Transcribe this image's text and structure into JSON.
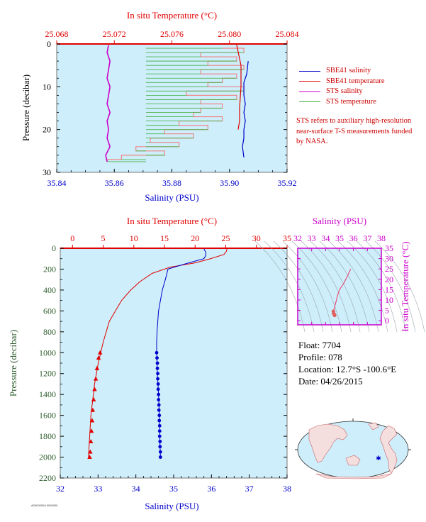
{
  "colors": {
    "plot_bg": "#cdeefa",
    "red": "#e00000",
    "blue": "#0000cc",
    "magenta": "#cc00cc",
    "green": "#4db34d",
    "pink": "#ee8888",
    "dark_green": "#2f5f2f"
  },
  "chart_data": [
    {
      "type": "line",
      "name": "top-profile",
      "title": "",
      "xlabel": "Salinity (PSU)",
      "x2label": "In situ Temperature (°C)",
      "ylabel": "Pressure (decibar)",
      "xlim": [
        35.84,
        35.92
      ],
      "x2lim": [
        25.068,
        25.084
      ],
      "ylim": [
        0,
        30
      ],
      "y_reversed": true,
      "xticks": [
        "35.84",
        "35.86",
        "35.88",
        "35.90",
        "35.92"
      ],
      "x2ticks": [
        "25.068",
        "25.072",
        "25.076",
        "25.080",
        "25.084"
      ],
      "yticks": [
        "0",
        "10",
        "20",
        "30"
      ],
      "grid": false,
      "legend": [
        {
          "label": "SBE41 salinity",
          "color": "#0000cc"
        },
        {
          "label": "SBE41 temperature",
          "color": "#e00000"
        },
        {
          "label": "STS salinity",
          "color": "#cc00cc"
        },
        {
          "label": "STS temperature",
          "color": "#4db34d"
        }
      ],
      "annotation": "STS refers to auxiliary high-resolution near-surface T-S measurements funded by NASA.",
      "series": [
        {
          "name": "STS salinity",
          "axis": "salinity",
          "color": "#cc00cc",
          "points": [
            [
              35.858,
              0.3
            ],
            [
              35.8575,
              2
            ],
            [
              35.8585,
              4
            ],
            [
              35.858,
              6
            ],
            [
              35.8575,
              8
            ],
            [
              35.8585,
              10
            ],
            [
              35.858,
              12
            ],
            [
              35.8575,
              14
            ],
            [
              35.8585,
              16
            ],
            [
              35.8575,
              18
            ],
            [
              35.858,
              20
            ],
            [
              35.8575,
              22
            ],
            [
              35.8585,
              24
            ],
            [
              35.857,
              26
            ],
            [
              35.8575,
              27.5
            ]
          ]
        },
        {
          "name": "SBE41 salinity",
          "axis": "salinity",
          "color": "#0000cc",
          "points": [
            [
              35.9065,
              4
            ],
            [
              35.906,
              7
            ],
            [
              35.905,
              9
            ],
            [
              35.905,
              12
            ],
            [
              35.9055,
              14
            ],
            [
              35.905,
              16
            ],
            [
              35.9055,
              18
            ],
            [
              35.905,
              20
            ],
            [
              35.905,
              22
            ],
            [
              35.9045,
              24
            ],
            [
              35.905,
              26.5
            ]
          ]
        },
        {
          "name": "SBE41 temperature",
          "axis": "temperature",
          "color": "#e00000",
          "points": [
            [
              25.0805,
              0.2
            ],
            [
              25.0808,
              5
            ],
            [
              25.0808,
              10
            ],
            [
              25.0807,
              15
            ],
            [
              25.0807,
              18
            ],
            [
              25.0806,
              20
            ]
          ]
        },
        {
          "name": "STS temperature",
          "axis": "temperature",
          "color": "#4db34d",
          "points": [
            [
              25.0795,
              1
            ],
            [
              25.081,
              2
            ],
            [
              25.078,
              3
            ],
            [
              25.0805,
              4
            ],
            [
              25.0785,
              5
            ],
            [
              25.081,
              6
            ],
            [
              25.078,
              7
            ],
            [
              25.0805,
              8
            ],
            [
              25.0795,
              9
            ],
            [
              25.0785,
              10
            ],
            [
              25.081,
              11
            ],
            [
              25.077,
              12
            ],
            [
              25.0805,
              13
            ],
            [
              25.078,
              14
            ],
            [
              25.0795,
              15
            ],
            [
              25.078,
              16
            ],
            [
              25.0775,
              17
            ],
            [
              25.0795,
              18
            ],
            [
              25.0765,
              19
            ],
            [
              25.0785,
              20
            ],
            [
              25.0755,
              21
            ],
            [
              25.0775,
              22
            ],
            [
              25.0745,
              23
            ],
            [
              25.0765,
              24
            ],
            [
              25.0735,
              25
            ],
            [
              25.0755,
              26
            ],
            [
              25.0725,
              27
            ],
            [
              25.0715,
              27.5
            ]
          ]
        }
      ]
    },
    {
      "type": "line",
      "name": "bottom-profile",
      "title": "",
      "xlabel": "Salinity (PSU)",
      "x2label": "In situ Temperature (°C)",
      "ylabel": "Pressure (decibar)",
      "xlim": [
        32,
        38
      ],
      "x2lim": [
        -2,
        35
      ],
      "ylim": [
        0,
        2200
      ],
      "y_reversed": true,
      "xticks": [
        "32",
        "33",
        "34",
        "35",
        "36",
        "37",
        "38"
      ],
      "x2ticks": [
        "0",
        "5",
        "10",
        "15",
        "20",
        "25",
        "30",
        "35"
      ],
      "x2tick_values": [
        0,
        5,
        10,
        15,
        20,
        25,
        30,
        35
      ],
      "yticks": [
        "0",
        "200",
        "400",
        "600",
        "800",
        "1000",
        "1200",
        "1400",
        "1600",
        "1800",
        "2000",
        "2200"
      ],
      "grid": false,
      "series": [
        {
          "name": "temperature",
          "axis": "temperature",
          "color": "#e00000",
          "points": [
            [
              25.2,
              5
            ],
            [
              25.1,
              30
            ],
            [
              24.7,
              60
            ],
            [
              22.5,
              100
            ],
            [
              20,
              140
            ],
            [
              16,
              180
            ],
            [
              13,
              240
            ],
            [
              11,
              320
            ],
            [
              9.5,
              400
            ],
            [
              8,
              500
            ],
            [
              7,
              600
            ],
            [
              6,
              700
            ],
            [
              5.5,
              800
            ],
            [
              5,
              900
            ],
            [
              4.6,
              1000
            ],
            [
              4.2,
              1100
            ],
            [
              3.9,
              1200
            ],
            [
              3.6,
              1300
            ],
            [
              3.4,
              1400
            ],
            [
              3.2,
              1500
            ],
            [
              3.0,
              1600
            ],
            [
              2.9,
              1700
            ],
            [
              2.8,
              1800
            ],
            [
              2.7,
              1900
            ],
            [
              2.6,
              2000
            ]
          ],
          "markers": [
            [
              4.5,
              1000
            ],
            [
              4.25,
              1050
            ],
            [
              4.0,
              1150
            ],
            [
              3.8,
              1250
            ],
            [
              3.6,
              1350
            ],
            [
              3.45,
              1450
            ],
            [
              3.3,
              1550
            ],
            [
              3.2,
              1650
            ],
            [
              3.1,
              1750
            ],
            [
              3.0,
              1850
            ],
            [
              2.9,
              1950
            ],
            [
              2.8,
              2000
            ]
          ]
        },
        {
          "name": "salinity",
          "axis": "salinity",
          "color": "#0000cc",
          "points": [
            [
              35.8,
              5
            ],
            [
              35.85,
              40
            ],
            [
              35.85,
              70
            ],
            [
              35.8,
              100
            ],
            [
              35.3,
              150
            ],
            [
              34.85,
              200
            ],
            [
              34.78,
              300
            ],
            [
              34.7,
              400
            ],
            [
              34.65,
              500
            ],
            [
              34.6,
              600
            ],
            [
              34.58,
              700
            ],
            [
              34.56,
              800
            ],
            [
              34.55,
              900
            ],
            [
              34.55,
              1000
            ],
            [
              34.57,
              1200
            ],
            [
              34.6,
              1400
            ],
            [
              34.62,
              1600
            ],
            [
              34.63,
              1800
            ],
            [
              34.65,
              2000
            ]
          ],
          "markers": [
            [
              34.55,
              1000
            ],
            [
              34.56,
              1050
            ],
            [
              34.57,
              1100
            ],
            [
              34.57,
              1150
            ],
            [
              34.58,
              1200
            ],
            [
              34.58,
              1250
            ],
            [
              34.59,
              1300
            ],
            [
              34.59,
              1350
            ],
            [
              34.6,
              1400
            ],
            [
              34.6,
              1450
            ],
            [
              34.61,
              1500
            ],
            [
              34.61,
              1550
            ],
            [
              34.62,
              1600
            ],
            [
              34.62,
              1650
            ],
            [
              34.63,
              1700
            ],
            [
              34.63,
              1750
            ],
            [
              34.63,
              1800
            ],
            [
              34.64,
              1850
            ],
            [
              34.64,
              1900
            ],
            [
              34.65,
              1950
            ],
            [
              34.65,
              2000
            ]
          ]
        }
      ]
    },
    {
      "type": "line",
      "name": "ts-diagram",
      "title": "",
      "xlabel": "Salinity (PSU)",
      "ylabel": "In situ Temperature (°C)",
      "xlim": [
        32,
        38
      ],
      "ylim": [
        -2,
        35
      ],
      "xticks": [
        "32",
        "33",
        "34",
        "35",
        "36",
        "37",
        "38"
      ],
      "yticks": [
        "0",
        "5",
        "10",
        "15",
        "20",
        "25",
        "30",
        "35"
      ],
      "ytick_values": [
        0,
        5,
        10,
        15,
        20,
        25,
        30,
        35
      ],
      "grid": false,
      "series": [
        {
          "name": "T-S",
          "color": "#ee3366",
          "points": [
            [
              35.8,
              25
            ],
            [
              35.6,
              22
            ],
            [
              35.3,
              18
            ],
            [
              35,
              15
            ],
            [
              34.85,
              12
            ],
            [
              34.78,
              10
            ],
            [
              34.7,
              8
            ],
            [
              34.62,
              6
            ],
            [
              34.58,
              5
            ],
            [
              34.56,
              4.5
            ],
            [
              34.58,
              3.5
            ],
            [
              34.62,
              3
            ],
            [
              34.65,
              2.6
            ]
          ]
        }
      ]
    }
  ],
  "float_info": {
    "float": "Float:  7704",
    "profile": "Profile:  078",
    "location": "Location:  12.7°S  -100.6°E",
    "date": "Date:  04/26/2015"
  },
  "map": {
    "marker_lon": -100.6,
    "marker_lat": -12.7
  },
  "footer_text": "A0000000A 0000000"
}
